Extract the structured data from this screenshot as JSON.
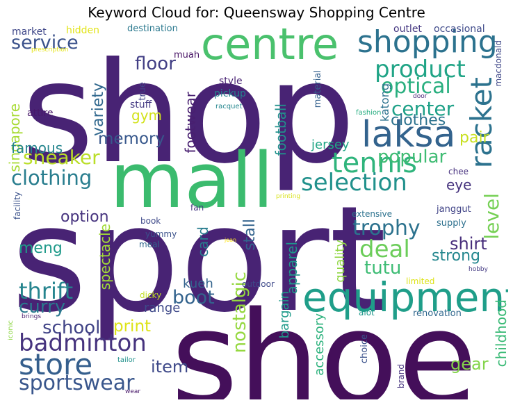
{
  "title": "Keyword Cloud for: Queensway Shopping Centre",
  "chart_data": {
    "type": "wordcloud",
    "title": "Keyword Cloud for: Queensway Shopping Centre",
    "words": [
      {
        "text": "shop",
        "color": "#482374"
      },
      {
        "text": "sport",
        "color": "#482374"
      },
      {
        "text": "shoe",
        "color": "#440f5a"
      },
      {
        "text": "mall",
        "color": "#3bbb6e"
      },
      {
        "text": "centre",
        "color": "#4ac16d"
      },
      {
        "text": "shopping",
        "color": "#2c728e"
      },
      {
        "text": "equipment",
        "color": "#1f9e89"
      },
      {
        "text": "laksa",
        "color": "#33638d"
      },
      {
        "text": "store",
        "color": "#355f8d"
      },
      {
        "text": "tennis",
        "color": "#2fb47c"
      },
      {
        "text": "racket",
        "color": "#2c728e"
      },
      {
        "text": "badminton",
        "color": "#46337e"
      },
      {
        "text": "sportswear",
        "color": "#39568c"
      },
      {
        "text": "product",
        "color": "#20a486"
      },
      {
        "text": "service",
        "color": "#3b528b"
      },
      {
        "text": "selection",
        "color": "#21918c"
      },
      {
        "text": "deal",
        "color": "#6ccd5a"
      },
      {
        "text": "thrift",
        "color": "#25848e"
      },
      {
        "text": "optical",
        "color": "#29af7f"
      },
      {
        "text": "center",
        "color": "#1fa188"
      },
      {
        "text": "trophy",
        "color": "#2c728e"
      },
      {
        "text": "level",
        "color": "#75d054"
      },
      {
        "text": "clothing",
        "color": "#287d8e"
      },
      {
        "text": "sneaker",
        "color": "#bade28"
      },
      {
        "text": "boot",
        "color": "#33638d"
      },
      {
        "text": "popular",
        "color": "#3fbc73"
      },
      {
        "text": "curry",
        "color": "#2a788e"
      },
      {
        "text": "tutu",
        "color": "#3dbc74"
      },
      {
        "text": "school",
        "color": "#414487"
      },
      {
        "text": "memory",
        "color": "#38588c"
      },
      {
        "text": "floor",
        "color": "#423f85"
      },
      {
        "text": "variety",
        "color": "#31688e"
      },
      {
        "text": "item",
        "color": "#3e4989"
      },
      {
        "text": "gear",
        "color": "#84d44b"
      },
      {
        "text": "shirt",
        "color": "#472d7b"
      },
      {
        "text": "strong",
        "color": "#24878e"
      },
      {
        "text": "meng",
        "color": "#1f9a8a"
      },
      {
        "text": "print",
        "color": "#dde318"
      },
      {
        "text": "apparel",
        "color": "#1f968b"
      },
      {
        "text": "clothes",
        "color": "#2c728e"
      },
      {
        "text": "football",
        "color": "#21918c"
      },
      {
        "text": "nostalgic",
        "color": "#95d840"
      },
      {
        "text": "childhood",
        "color": "#3aba76"
      },
      {
        "text": "footwear",
        "color": "#481f70"
      },
      {
        "text": "singapore",
        "color": "#a8db34"
      },
      {
        "text": "jersey",
        "color": "#21a685"
      },
      {
        "text": "stall",
        "color": "#33638d"
      },
      {
        "text": "option",
        "color": "#46337e"
      },
      {
        "text": "spectacle",
        "color": "#a2da37"
      },
      {
        "text": "gym",
        "color": "#d2e21b"
      },
      {
        "text": "pair",
        "color": "#c8e020"
      },
      {
        "text": "famous",
        "color": "#25858e"
      },
      {
        "text": "eye",
        "color": "#46337e"
      },
      {
        "text": "card",
        "color": "#287c8e"
      },
      {
        "text": "quality",
        "color": "#90d743"
      },
      {
        "text": "bargain",
        "color": "#1e9b8a"
      },
      {
        "text": "kueh",
        "color": "#33638d"
      },
      {
        "text": "range",
        "color": "#3e4989"
      },
      {
        "text": "accessory",
        "color": "#2db27d"
      },
      {
        "text": "katong",
        "color": "#2c728e"
      },
      {
        "text": "outlet",
        "color": "#453781"
      },
      {
        "text": "occasional",
        "color": "#3e4989"
      },
      {
        "text": "market",
        "color": "#3f4788"
      },
      {
        "text": "hidden",
        "color": "#e2e418"
      },
      {
        "text": "destination",
        "color": "#2a788e"
      },
      {
        "text": "muah",
        "color": "#471365"
      },
      {
        "text": "style",
        "color": "#482173"
      },
      {
        "text": "pickup",
        "color": "#26828e"
      },
      {
        "text": "true",
        "color": "#404588"
      },
      {
        "text": "stuff",
        "color": "#443a83"
      },
      {
        "text": "attire",
        "color": "#48186a"
      },
      {
        "text": "material",
        "color": "#34618d"
      },
      {
        "text": "macdonald",
        "color": "#3f4788"
      },
      {
        "text": "prescription",
        "color": "#e5e419"
      },
      {
        "text": "racquet",
        "color": "#24868e"
      },
      {
        "text": "fashion",
        "color": "#27ad81"
      },
      {
        "text": "door",
        "color": "#482677"
      },
      {
        "text": "chee",
        "color": "#46307e"
      },
      {
        "text": "fan",
        "color": "#453882"
      },
      {
        "text": "book",
        "color": "#3e4989"
      },
      {
        "text": "yummy",
        "color": "#3b528b"
      },
      {
        "text": "meal",
        "color": "#31688e"
      },
      {
        "text": "facility",
        "color": "#3b528b"
      },
      {
        "text": "printing",
        "color": "#d8e219"
      },
      {
        "text": "jean",
        "color": "#fde725"
      },
      {
        "text": "extensive",
        "color": "#2c728e"
      },
      {
        "text": "janggut",
        "color": "#414487"
      },
      {
        "text": "supply",
        "color": "#2d708e"
      },
      {
        "text": "hobby",
        "color": "#443a83"
      },
      {
        "text": "limited",
        "color": "#dde318"
      },
      {
        "text": "dicky",
        "color": "#c2df23"
      },
      {
        "text": "outdoor",
        "color": "#3e4989"
      },
      {
        "text": "alot",
        "color": "#1f988b"
      },
      {
        "text": "renovation",
        "color": "#31688e"
      },
      {
        "text": "iconic",
        "color": "#8ed645"
      },
      {
        "text": "brings",
        "color": "#481a6c"
      },
      {
        "text": "tailor",
        "color": "#21918c"
      },
      {
        "text": "choice",
        "color": "#3b528b"
      },
      {
        "text": "brand",
        "color": "#46337e"
      },
      {
        "text": "wear",
        "color": "#48186a"
      }
    ]
  }
}
